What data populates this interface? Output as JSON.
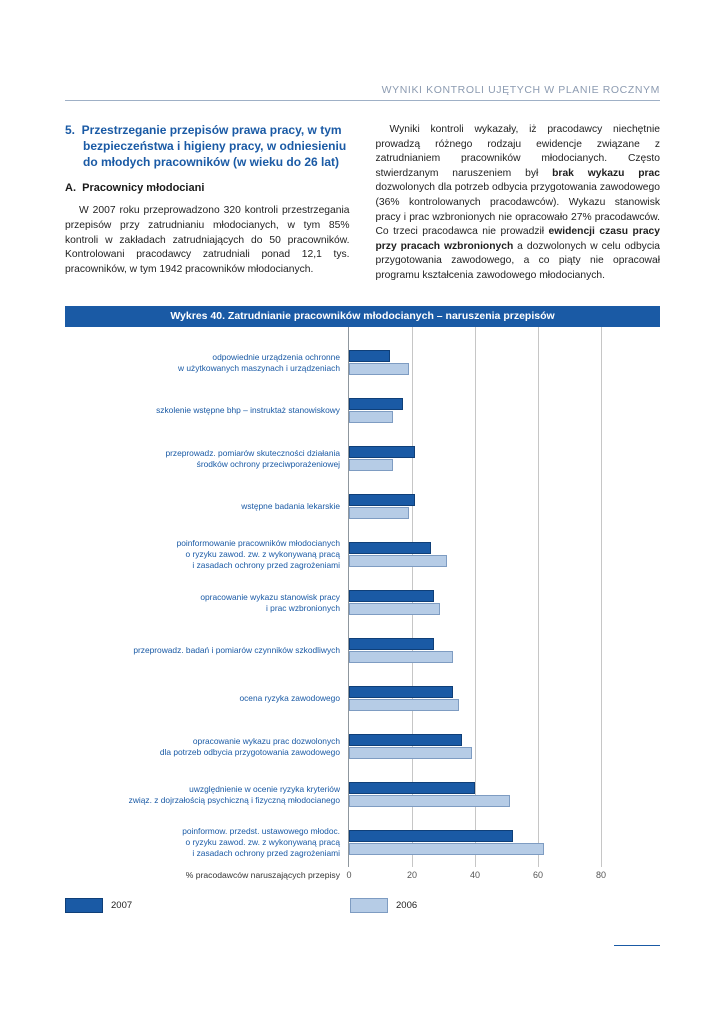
{
  "page": {
    "running_header": "WYNIKI KONTROLI UJĘTYCH W PLANIE ROCZNYM"
  },
  "section": {
    "heading": "5.  Przestrzeganie przepisów prawa pracy, w tym bezpieczeństwa i higieny pracy, w odniesieniu do młodych pracowników (w wieku do 26 lat)",
    "subheading": "A.  Pracownicy młodociani",
    "left_paragraph": "W 2007 roku przeprowadzono 320 kontroli przestrzegania przepisów przy zatrudnianiu młodocianych, w tym 85% kontroli w zakładach zatrudniających do 50 pracowników. Kontrolowani pracodawcy zatrudniali ponad 12,1 tys. pracowników, w tym 1942 pracowników młodocianych.",
    "right_paragraph": {
      "p1": "Wyniki kontroli wykazały, iż pracodawcy niechętnie prowadzą różnego rodzaju ewidencje związane z zatrudnianiem pracowników młodocianych. Często stwierdzanym naruszeniem był ",
      "b1": "brak wykazu prac",
      "p2": " dozwolonych dla potrzeb odbycia przygotowania zawodowego (36% kontrolowanych pracodawców). Wykazu stanowisk pracy i prac wzbronionych nie opracowało 27% pracodawców. Co trzeci pracodawca nie prowadził ",
      "b2": "ewidencji czasu pracy przy pracach wzbronionych",
      "p3": " a dozwolonych w celu odbycia przygotowania zawodowego, a co piąty nie opracował programu kształcenia zawodowego młodocianych."
    }
  },
  "chart_data": {
    "type": "bar",
    "orientation": "horizontal",
    "title": "Wykres 40. Zatrudnianie pracowników młodocianych – naruszenia przepisów",
    "xlabel": "% pracodawców naruszających przepisy",
    "xlim": [
      0,
      80
    ],
    "xticks": [
      0,
      20,
      40,
      60,
      80
    ],
    "grid": true,
    "legend_position": "bottom",
    "categories": [
      "odpowiednie urządzenia ochronne\nw użytkowanych maszynach i urządzeniach",
      "szkolenie wstępne bhp – instruktaż stanowiskowy",
      "przeprowadz. pomiarów skuteczności działania\nśrodków ochrony przeciwporażeniowej",
      "wstępne badania lekarskie",
      "poinformowanie pracowników młodocianych\no ryzyku zawod. zw. z wykonywaną pracą\ni zasadach ochrony przed zagrożeniami",
      "opracowanie wykazu stanowisk pracy\ni prac wzbronionych",
      "przeprowadz. badań i pomiarów czynników szkodliwych",
      "ocena ryzyka zawodowego",
      "opracowanie wykazu prac dozwolonych\ndla potrzeb odbycia przygotowania zawodowego",
      "uwzględnienie w ocenie ryzyka kryteriów\nzwiąz. z dojrzałością psychiczną i fizyczną młodocianego",
      "poinformow. przedst. ustawowego młodoc.\no ryzyku zawod. zw. z wykonywaną pracą\ni zasadach ochrony przed zagrożeniami"
    ],
    "series": [
      {
        "name": "2007",
        "color": "#1a5aa5",
        "values": [
          13,
          17,
          21,
          21,
          26,
          27,
          27,
          33,
          36,
          40,
          52
        ]
      },
      {
        "name": "2006",
        "color": "#b6cce6",
        "values": [
          19,
          14,
          14,
          19,
          31,
          29,
          33,
          35,
          39,
          51,
          62
        ]
      }
    ]
  }
}
